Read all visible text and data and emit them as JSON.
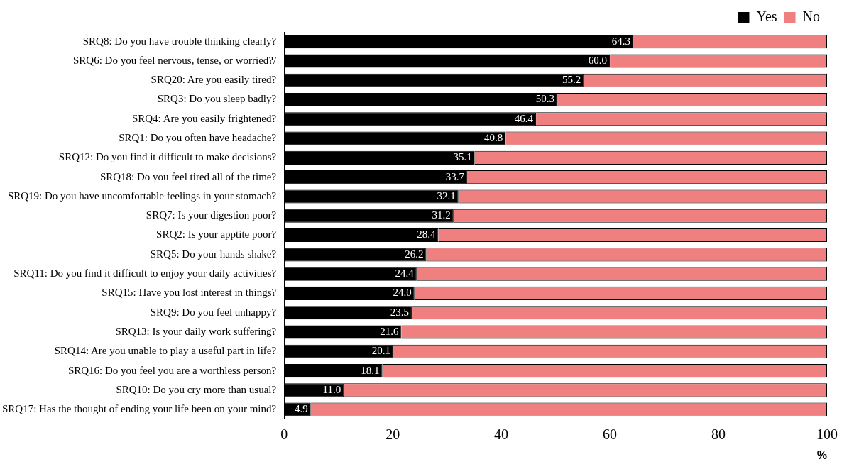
{
  "chart_data": {
    "type": "bar",
    "orientation": "horizontal",
    "stacked": true,
    "categories": [
      "SRQ8: Do you have trouble thinking clearly?",
      "SRQ6: Do you feel nervous, tense, or worried?/",
      "SRQ20: Are you easily tired?",
      "SRQ3: Do you sleep badly?",
      "SRQ4: Are you easily frightened?",
      "SRQ1: Do you often have headache?",
      "SRQ12: Do you find it difficult to make decisions?",
      "SRQ18: Do you feel tired all of the time?",
      "SRQ19: Do you have uncomfortable feelings in your stomach?",
      "SRQ7: Is your digestion poor?",
      "SRQ2: Is your apptite poor?",
      "SRQ5: Do your hands shake?",
      "SRQ11: Do you find it difficult to enjoy your daily activities?",
      "SRQ15: Have you lost interest in things?",
      "SRQ9: Do you feel unhappy?",
      "SRQ13: Is your daily work suffering?",
      "SRQ14: Are you unable to play a useful part in life?",
      "SRQ16: Do you feel you are a worthless person?",
      "SRQ10: Do you cry more than usual?",
      "SRQ17: Has the thought of ending your life been on your mind?"
    ],
    "series": [
      {
        "name": "Yes",
        "color": "#000000",
        "values": [
          64.3,
          60.0,
          55.2,
          50.3,
          46.4,
          40.8,
          35.1,
          33.7,
          32.1,
          31.2,
          28.4,
          26.2,
          24.4,
          24.0,
          23.5,
          21.6,
          20.1,
          18.1,
          11.0,
          4.9
        ],
        "value_labels": [
          "64.3",
          "60.0",
          "55.2",
          "50.3",
          "46.4",
          "40.8",
          "35.1",
          "33.7",
          "32.1",
          "31.2",
          "28.4",
          "26.2",
          "24.4",
          "24.0",
          "23.5",
          "21.6",
          "20.1",
          "18.1",
          "11.0",
          "4.9"
        ]
      },
      {
        "name": "No",
        "color": "#f08080",
        "values": [
          35.7,
          40.0,
          44.8,
          49.7,
          53.6,
          59.2,
          64.9,
          66.3,
          67.9,
          68.8,
          71.6,
          73.8,
          75.6,
          76.0,
          76.5,
          78.4,
          79.9,
          81.9,
          89.0,
          95.1
        ]
      }
    ],
    "xlim": [
      0,
      100
    ],
    "xticks": [
      0,
      20,
      40,
      60,
      80,
      100
    ],
    "xlabel": "%",
    "grid": false,
    "legend": "top right"
  }
}
